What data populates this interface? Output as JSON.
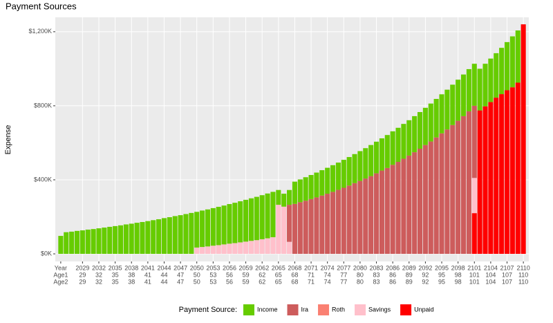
{
  "chart_data": {
    "type": "stacked_bar",
    "title": "Payment Sources",
    "y_label": "Expense",
    "legend_title": "Payment Source:",
    "legend_position": "bottom",
    "grid": true,
    "x": [
      2025,
      2026,
      2027,
      2028,
      2029,
      2030,
      2031,
      2032,
      2033,
      2034,
      2035,
      2036,
      2037,
      2038,
      2039,
      2040,
      2041,
      2042,
      2043,
      2044,
      2045,
      2046,
      2047,
      2048,
      2049,
      2050,
      2051,
      2052,
      2053,
      2054,
      2055,
      2056,
      2057,
      2058,
      2059,
      2060,
      2061,
      2062,
      2063,
      2064,
      2065,
      2066,
      2067,
      2068,
      2069,
      2070,
      2071,
      2072,
      2073,
      2074,
      2075,
      2076,
      2077,
      2078,
      2079,
      2080,
      2081,
      2082,
      2083,
      2084,
      2085,
      2086,
      2087,
      2088,
      2089,
      2090,
      2091,
      2092,
      2093,
      2094,
      2095,
      2096,
      2097,
      2098,
      2099,
      2100,
      2101,
      2102,
      2103,
      2104,
      2105,
      2106,
      2107,
      2108,
      2109,
      2110
    ],
    "xlim": [
      2024,
      2111
    ],
    "x_row_labels": [
      "Year",
      "Age1",
      "Age2"
    ],
    "x_row_labels_at": 2025,
    "xticks": [
      2029,
      2032,
      2035,
      2038,
      2041,
      2044,
      2047,
      2050,
      2053,
      2056,
      2059,
      2062,
      2065,
      2068,
      2071,
      2074,
      2077,
      2080,
      2083,
      2086,
      2089,
      2092,
      2095,
      2098,
      2101,
      2104,
      2107,
      2110
    ],
    "age1_labels": [
      "29",
      "32",
      "35",
      "38",
      "41",
      "44",
      "47",
      "50",
      "53",
      "56",
      "59",
      "62",
      "65",
      "68",
      "71",
      "74",
      "77",
      "80",
      "83",
      "86",
      "89",
      "92",
      "95",
      "98",
      "101",
      "104",
      "107",
      "110"
    ],
    "age2_labels": [
      "29",
      "32",
      "35",
      "38",
      "41",
      "44",
      "47",
      "50",
      "53",
      "56",
      "59",
      "62",
      "65",
      "68",
      "71",
      "74",
      "77",
      "80",
      "83",
      "86",
      "89",
      "92",
      "95",
      "98",
      "101",
      "104",
      "107",
      "110"
    ],
    "ylim": [
      -41,
      1278
    ],
    "yticks": [
      {
        "value": 0,
        "label": "$0K"
      },
      {
        "value": 400,
        "label": "$400K"
      },
      {
        "value": 800,
        "label": "$800K"
      },
      {
        "value": 1200,
        "label": "$1,200K"
      }
    ],
    "series": [
      {
        "name": "Income",
        "color": "#66cc00",
        "values": [
          97,
          117,
          120,
          124,
          127,
          131,
          134,
          138,
          142,
          146,
          150,
          154,
          159,
          163,
          168,
          172,
          177,
          182,
          187,
          193,
          198,
          204,
          209,
          215,
          221,
          193,
          197,
          200,
          203,
          207,
          210,
          214,
          218,
          222,
          226,
          230,
          234,
          238,
          242,
          245,
          80,
          70,
          80,
          120,
          123,
          127,
          130,
          134,
          137,
          140,
          144,
          147,
          151,
          154,
          157,
          161,
          164,
          168,
          171,
          174,
          178,
          181,
          184,
          188,
          191,
          195,
          198,
          201,
          205,
          208,
          211,
          215,
          218,
          222,
          225,
          228,
          227,
          225,
          230,
          235,
          240,
          250,
          260,
          275,
          282,
          0
        ]
      },
      {
        "name": "Ira",
        "color": "#cd5c5c",
        "values": [
          0,
          0,
          0,
          0,
          0,
          0,
          0,
          0,
          0,
          0,
          0,
          0,
          0,
          0,
          0,
          0,
          0,
          0,
          0,
          0,
          0,
          0,
          0,
          0,
          0,
          0,
          0,
          0,
          0,
          0,
          0,
          0,
          0,
          0,
          0,
          0,
          0,
          0,
          0,
          0,
          0,
          0,
          200,
          270,
          279,
          287,
          296,
          305,
          315,
          325,
          335,
          346,
          357,
          369,
          382,
          394,
          407,
          420,
          435,
          450,
          464,
          481,
          497,
          514,
          531,
          549,
          568,
          588,
          607,
          629,
          651,
          672,
          696,
          719,
          744,
          770,
          390,
          0,
          0,
          0,
          0,
          0,
          0,
          0,
          0,
          0
        ]
      },
      {
        "name": "Roth",
        "color": "#fa8072",
        "values": [
          0,
          0,
          0,
          0,
          0,
          0,
          0,
          0,
          0,
          0,
          0,
          0,
          0,
          0,
          0,
          0,
          0,
          0,
          0,
          0,
          0,
          0,
          0,
          0,
          0,
          0,
          0,
          0,
          0,
          0,
          0,
          0,
          0,
          0,
          0,
          0,
          0,
          0,
          0,
          0,
          0,
          0,
          0,
          0,
          0,
          0,
          0,
          0,
          0,
          0,
          0,
          0,
          0,
          0,
          0,
          0,
          0,
          0,
          0,
          0,
          0,
          0,
          0,
          0,
          0,
          0,
          0,
          0,
          0,
          0,
          0,
          0,
          0,
          0,
          0,
          0,
          0,
          0,
          0,
          0,
          0,
          0,
          0,
          0,
          0,
          0
        ]
      },
      {
        "name": "Savings",
        "color": "#ffc0cb",
        "values": [
          0,
          0,
          0,
          0,
          0,
          0,
          0,
          0,
          0,
          0,
          0,
          0,
          0,
          0,
          0,
          0,
          0,
          0,
          0,
          0,
          0,
          0,
          0,
          0,
          0,
          34,
          37,
          40,
          44,
          47,
          51,
          55,
          58,
          62,
          66,
          70,
          74,
          79,
          84,
          90,
          265,
          255,
          65,
          0,
          0,
          0,
          0,
          0,
          0,
          0,
          0,
          0,
          0,
          0,
          0,
          0,
          0,
          0,
          0,
          0,
          0,
          0,
          0,
          0,
          0,
          0,
          0,
          0,
          0,
          0,
          0,
          0,
          0,
          0,
          0,
          0,
          190,
          0,
          0,
          0,
          0,
          0,
          0,
          0,
          0,
          0
        ]
      },
      {
        "name": "Unpaid",
        "color": "#ff0000",
        "values": [
          0,
          0,
          0,
          0,
          0,
          0,
          0,
          0,
          0,
          0,
          0,
          0,
          0,
          0,
          0,
          0,
          0,
          0,
          0,
          0,
          0,
          0,
          0,
          0,
          0,
          0,
          0,
          0,
          0,
          0,
          0,
          0,
          0,
          0,
          0,
          0,
          0,
          0,
          0,
          0,
          0,
          0,
          0,
          0,
          0,
          0,
          0,
          0,
          0,
          0,
          0,
          0,
          0,
          0,
          0,
          0,
          0,
          0,
          0,
          0,
          0,
          0,
          0,
          0,
          0,
          0,
          0,
          0,
          0,
          0,
          0,
          0,
          0,
          0,
          0,
          0,
          220,
          775,
          797,
          820,
          844,
          863,
          884,
          900,
          925,
          1240
        ]
      }
    ]
  }
}
